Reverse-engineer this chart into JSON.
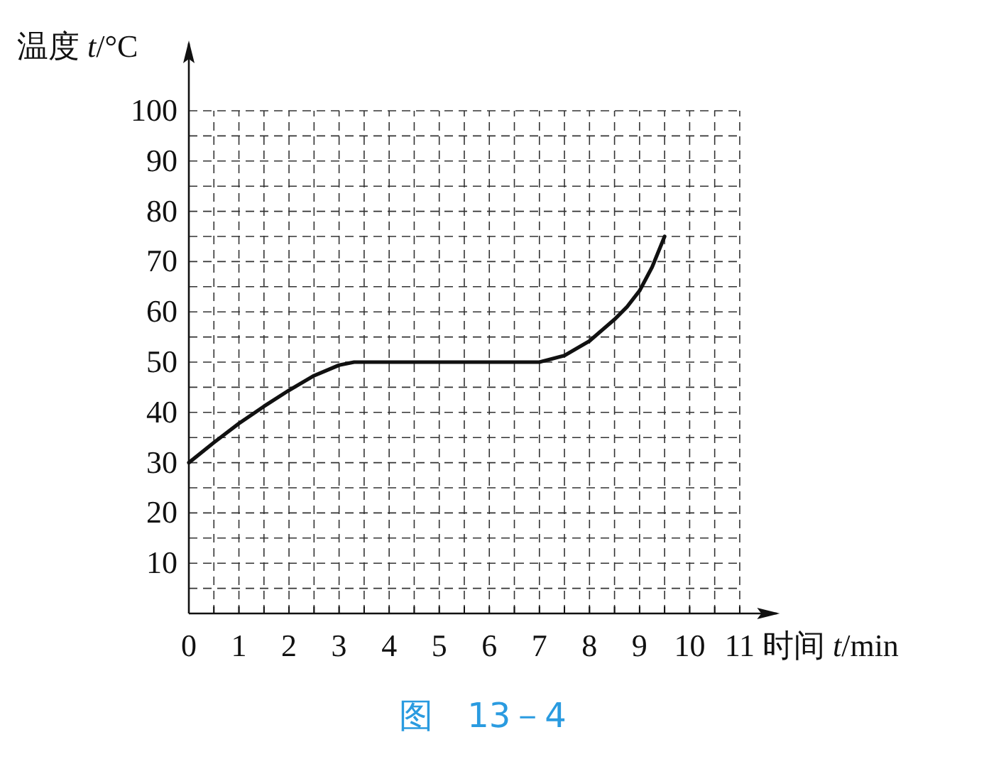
{
  "chart_data": {
    "type": "line",
    "xlabel": "时间 *t*/min",
    "ylabel": "温度 *t*/°C",
    "x": [
      0,
      0.5,
      1,
      1.5,
      2,
      2.5,
      3,
      3.3,
      4,
      5,
      6,
      7,
      7.5,
      8,
      8.5,
      8.75,
      9,
      9.25,
      9.5
    ],
    "series": [
      {
        "color": "#111111",
        "values": [
          30,
          34,
          37.8,
          41.2,
          44.4,
          47.3,
          49.4,
          50,
          50,
          50,
          50,
          50,
          51.3,
          54.2,
          58.5,
          61,
          64.2,
          68.9,
          75
        ]
      }
    ],
    "xlim": [
      0,
      11.8
    ],
    "ylim": [
      0,
      114
    ],
    "xticks": [
      0,
      1,
      2,
      3,
      4,
      5,
      6,
      7,
      8,
      9,
      10,
      11
    ],
    "yticks": [
      {
        "value": 0,
        "label": null
      },
      10,
      20,
      30,
      40,
      50,
      60,
      70,
      80,
      90,
      100
    ],
    "grid": true,
    "marker": "none",
    "line_style": "solid",
    "annotations": [
      "图　13－4"
    ]
  }
}
